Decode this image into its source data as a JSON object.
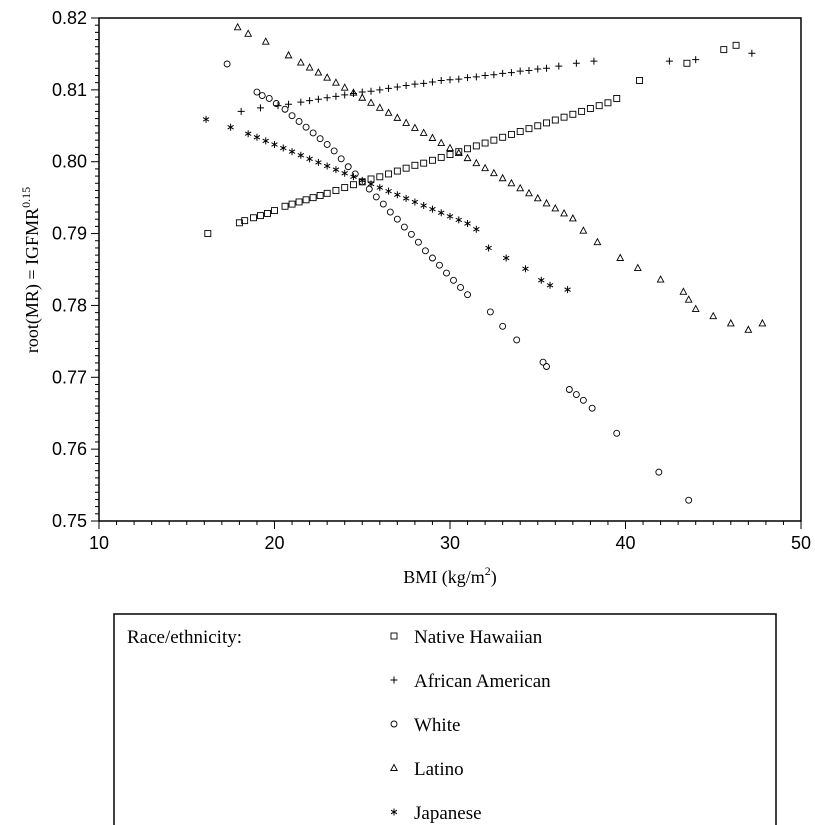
{
  "chart_data": {
    "type": "scatter",
    "xlabel": "BMI (kg/m",
    "xlabel_sup": "2",
    "xlabel_suffix": ")",
    "ylabel": "root(MR) = IGFMR",
    "ylabel_sup": "0.15",
    "xlim": [
      10,
      50
    ],
    "ylim": [
      0.75,
      0.82
    ],
    "x_ticks": [
      "10",
      "20",
      "30",
      "40",
      "50"
    ],
    "y_ticks": [
      "0.75",
      "0.76",
      "0.77",
      "0.78",
      "0.79",
      "0.80",
      "0.81",
      "0.82"
    ],
    "grid": false,
    "legend": {
      "title": "Race/ethnicity:",
      "placement": "below",
      "entries": [
        {
          "marker": "square",
          "label": "Native Hawaiian"
        },
        {
          "marker": "plus",
          "label": "African American"
        },
        {
          "marker": "circle",
          "label": "White"
        },
        {
          "marker": "triangle",
          "label": "Latino"
        },
        {
          "marker": "asterisk",
          "label": "Japanese"
        }
      ]
    },
    "series": [
      {
        "name": "Native Hawaiian",
        "marker": "square",
        "points": [
          [
            16.2,
            0.79
          ],
          [
            18.0,
            0.7915
          ],
          [
            18.3,
            0.7918
          ],
          [
            18.8,
            0.7922
          ],
          [
            19.2,
            0.7925
          ],
          [
            19.6,
            0.7928
          ],
          [
            20.0,
            0.7932
          ],
          [
            20.6,
            0.7938
          ],
          [
            21.0,
            0.7941
          ],
          [
            21.4,
            0.7944
          ],
          [
            21.8,
            0.7947
          ],
          [
            22.2,
            0.795
          ],
          [
            22.6,
            0.7953
          ],
          [
            23.0,
            0.7956
          ],
          [
            23.5,
            0.796
          ],
          [
            24.0,
            0.7964
          ],
          [
            24.5,
            0.7968
          ],
          [
            25.0,
            0.7972
          ],
          [
            25.5,
            0.7976
          ],
          [
            26.0,
            0.7979
          ],
          [
            26.5,
            0.7983
          ],
          [
            27.0,
            0.7987
          ],
          [
            27.5,
            0.7991
          ],
          [
            28.0,
            0.7995
          ],
          [
            28.5,
            0.7998
          ],
          [
            29.0,
            0.8002
          ],
          [
            29.5,
            0.8006
          ],
          [
            30.0,
            0.801
          ],
          [
            30.5,
            0.8014
          ],
          [
            31.0,
            0.8018
          ],
          [
            31.5,
            0.8022
          ],
          [
            32.0,
            0.8026
          ],
          [
            32.5,
            0.803
          ],
          [
            33.0,
            0.8034
          ],
          [
            33.5,
            0.8038
          ],
          [
            34.0,
            0.8042
          ],
          [
            34.5,
            0.8046
          ],
          [
            35.0,
            0.805
          ],
          [
            35.5,
            0.8054
          ],
          [
            36.0,
            0.8058
          ],
          [
            36.5,
            0.8062
          ],
          [
            37.0,
            0.8066
          ],
          [
            37.5,
            0.807
          ],
          [
            38.0,
            0.8074
          ],
          [
            38.5,
            0.8078
          ],
          [
            39.0,
            0.8082
          ],
          [
            39.5,
            0.8088
          ],
          [
            40.8,
            0.8113
          ],
          [
            43.5,
            0.8137
          ],
          [
            45.6,
            0.8156
          ],
          [
            46.3,
            0.8162
          ]
        ]
      },
      {
        "name": "African American",
        "marker": "plus",
        "points": [
          [
            18.1,
            0.807
          ],
          [
            19.2,
            0.8075
          ],
          [
            20.2,
            0.8078
          ],
          [
            20.8,
            0.808
          ],
          [
            21.5,
            0.8083
          ],
          [
            22.0,
            0.8085
          ],
          [
            22.5,
            0.8087
          ],
          [
            23.0,
            0.8089
          ],
          [
            23.5,
            0.8091
          ],
          [
            24.0,
            0.8093
          ],
          [
            24.5,
            0.8095
          ],
          [
            25.0,
            0.8097
          ],
          [
            25.5,
            0.8098
          ],
          [
            26.0,
            0.81
          ],
          [
            26.5,
            0.8102
          ],
          [
            27.0,
            0.8104
          ],
          [
            27.5,
            0.8106
          ],
          [
            28.0,
            0.8108
          ],
          [
            28.5,
            0.8109
          ],
          [
            29.0,
            0.8111
          ],
          [
            29.5,
            0.8113
          ],
          [
            30.0,
            0.8114
          ],
          [
            30.5,
            0.8115
          ],
          [
            31.0,
            0.8117
          ],
          [
            31.5,
            0.8118
          ],
          [
            32.0,
            0.812
          ],
          [
            32.5,
            0.8121
          ],
          [
            33.0,
            0.8123
          ],
          [
            33.5,
            0.8124
          ],
          [
            34.0,
            0.8126
          ],
          [
            34.5,
            0.8127
          ],
          [
            35.0,
            0.8129
          ],
          [
            35.5,
            0.813
          ],
          [
            36.2,
            0.8133
          ],
          [
            37.2,
            0.8137
          ],
          [
            38.2,
            0.814
          ],
          [
            42.5,
            0.814
          ],
          [
            44.0,
            0.8142
          ],
          [
            47.2,
            0.8151
          ]
        ]
      },
      {
        "name": "White",
        "marker": "circle",
        "points": [
          [
            17.3,
            0.8136
          ],
          [
            19.0,
            0.8097
          ],
          [
            19.3,
            0.8092
          ],
          [
            19.7,
            0.8088
          ],
          [
            20.1,
            0.8081
          ],
          [
            20.6,
            0.8073
          ],
          [
            21.0,
            0.8064
          ],
          [
            21.4,
            0.8056
          ],
          [
            21.8,
            0.8048
          ],
          [
            22.2,
            0.804
          ],
          [
            22.6,
            0.8032
          ],
          [
            23.0,
            0.8024
          ],
          [
            23.4,
            0.8015
          ],
          [
            23.8,
            0.8004
          ],
          [
            24.2,
            0.7993
          ],
          [
            24.6,
            0.7983
          ],
          [
            25.0,
            0.7972
          ],
          [
            25.4,
            0.7962
          ],
          [
            25.8,
            0.7951
          ],
          [
            26.2,
            0.7941
          ],
          [
            26.6,
            0.793
          ],
          [
            27.0,
            0.792
          ],
          [
            27.4,
            0.7909
          ],
          [
            27.8,
            0.7899
          ],
          [
            28.2,
            0.7888
          ],
          [
            28.6,
            0.7876
          ],
          [
            29.0,
            0.7866
          ],
          [
            29.4,
            0.7856
          ],
          [
            29.8,
            0.7845
          ],
          [
            30.2,
            0.7835
          ],
          [
            30.6,
            0.7825
          ],
          [
            31.0,
            0.7815
          ],
          [
            32.3,
            0.7791
          ],
          [
            33.0,
            0.7771
          ],
          [
            33.8,
            0.7752
          ],
          [
            35.3,
            0.7721
          ],
          [
            35.5,
            0.7715
          ],
          [
            36.8,
            0.7683
          ],
          [
            37.2,
            0.7676
          ],
          [
            37.6,
            0.7668
          ],
          [
            38.1,
            0.7657
          ],
          [
            39.5,
            0.7622
          ],
          [
            41.9,
            0.7568
          ],
          [
            43.6,
            0.7529
          ]
        ]
      },
      {
        "name": "Latino",
        "marker": "triangle",
        "points": [
          [
            17.9,
            0.8187
          ],
          [
            18.5,
            0.8178
          ],
          [
            19.5,
            0.8167
          ],
          [
            20.8,
            0.8148
          ],
          [
            21.5,
            0.8138
          ],
          [
            22.0,
            0.8131
          ],
          [
            22.5,
            0.8124
          ],
          [
            23.0,
            0.8117
          ],
          [
            23.5,
            0.811
          ],
          [
            24.0,
            0.8103
          ],
          [
            24.5,
            0.8096
          ],
          [
            25.0,
            0.8089
          ],
          [
            25.5,
            0.8082
          ],
          [
            26.0,
            0.8075
          ],
          [
            26.5,
            0.8068
          ],
          [
            27.0,
            0.8061
          ],
          [
            27.5,
            0.8054
          ],
          [
            28.0,
            0.8047
          ],
          [
            28.5,
            0.804
          ],
          [
            29.0,
            0.8033
          ],
          [
            29.5,
            0.8026
          ],
          [
            30.0,
            0.8019
          ],
          [
            30.5,
            0.8012
          ],
          [
            31.0,
            0.8005
          ],
          [
            31.5,
            0.7998
          ],
          [
            32.0,
            0.7991
          ],
          [
            32.5,
            0.7984
          ],
          [
            33.0,
            0.7977
          ],
          [
            33.5,
            0.797
          ],
          [
            34.0,
            0.7963
          ],
          [
            34.5,
            0.7956
          ],
          [
            35.0,
            0.7949
          ],
          [
            35.5,
            0.7942
          ],
          [
            36.0,
            0.7935
          ],
          [
            36.5,
            0.7928
          ],
          [
            37.0,
            0.7921
          ],
          [
            37.6,
            0.7904
          ],
          [
            38.4,
            0.7888
          ],
          [
            39.7,
            0.7866
          ],
          [
            40.7,
            0.7852
          ],
          [
            42.0,
            0.7836
          ],
          [
            43.3,
            0.7819
          ],
          [
            43.6,
            0.7808
          ],
          [
            44.0,
            0.7795
          ],
          [
            45.0,
            0.7785
          ],
          [
            46.0,
            0.7775
          ],
          [
            47.0,
            0.7766
          ],
          [
            47.8,
            0.7775
          ]
        ]
      },
      {
        "name": "Japanese",
        "marker": "asterisk",
        "points": [
          [
            16.1,
            0.8059
          ],
          [
            17.5,
            0.8048
          ],
          [
            18.5,
            0.8039
          ],
          [
            19.0,
            0.8034
          ],
          [
            19.5,
            0.8029
          ],
          [
            20.0,
            0.8024
          ],
          [
            20.5,
            0.8019
          ],
          [
            21.0,
            0.8014
          ],
          [
            21.5,
            0.8009
          ],
          [
            22.0,
            0.8004
          ],
          [
            22.5,
            0.7999
          ],
          [
            23.0,
            0.7994
          ],
          [
            23.5,
            0.7989
          ],
          [
            24.0,
            0.7984
          ],
          [
            24.5,
            0.7979
          ],
          [
            25.0,
            0.7974
          ],
          [
            25.5,
            0.7969
          ],
          [
            26.0,
            0.7964
          ],
          [
            26.5,
            0.7959
          ],
          [
            27.0,
            0.7954
          ],
          [
            27.5,
            0.7949
          ],
          [
            28.0,
            0.7944
          ],
          [
            28.5,
            0.7939
          ],
          [
            29.0,
            0.7934
          ],
          [
            29.5,
            0.7929
          ],
          [
            30.0,
            0.7924
          ],
          [
            30.5,
            0.7919
          ],
          [
            31.0,
            0.7914
          ],
          [
            31.5,
            0.7906
          ],
          [
            32.2,
            0.788
          ],
          [
            33.2,
            0.7866
          ],
          [
            34.3,
            0.7851
          ],
          [
            35.2,
            0.7835
          ],
          [
            35.7,
            0.7828
          ],
          [
            36.7,
            0.7822
          ]
        ]
      }
    ]
  }
}
